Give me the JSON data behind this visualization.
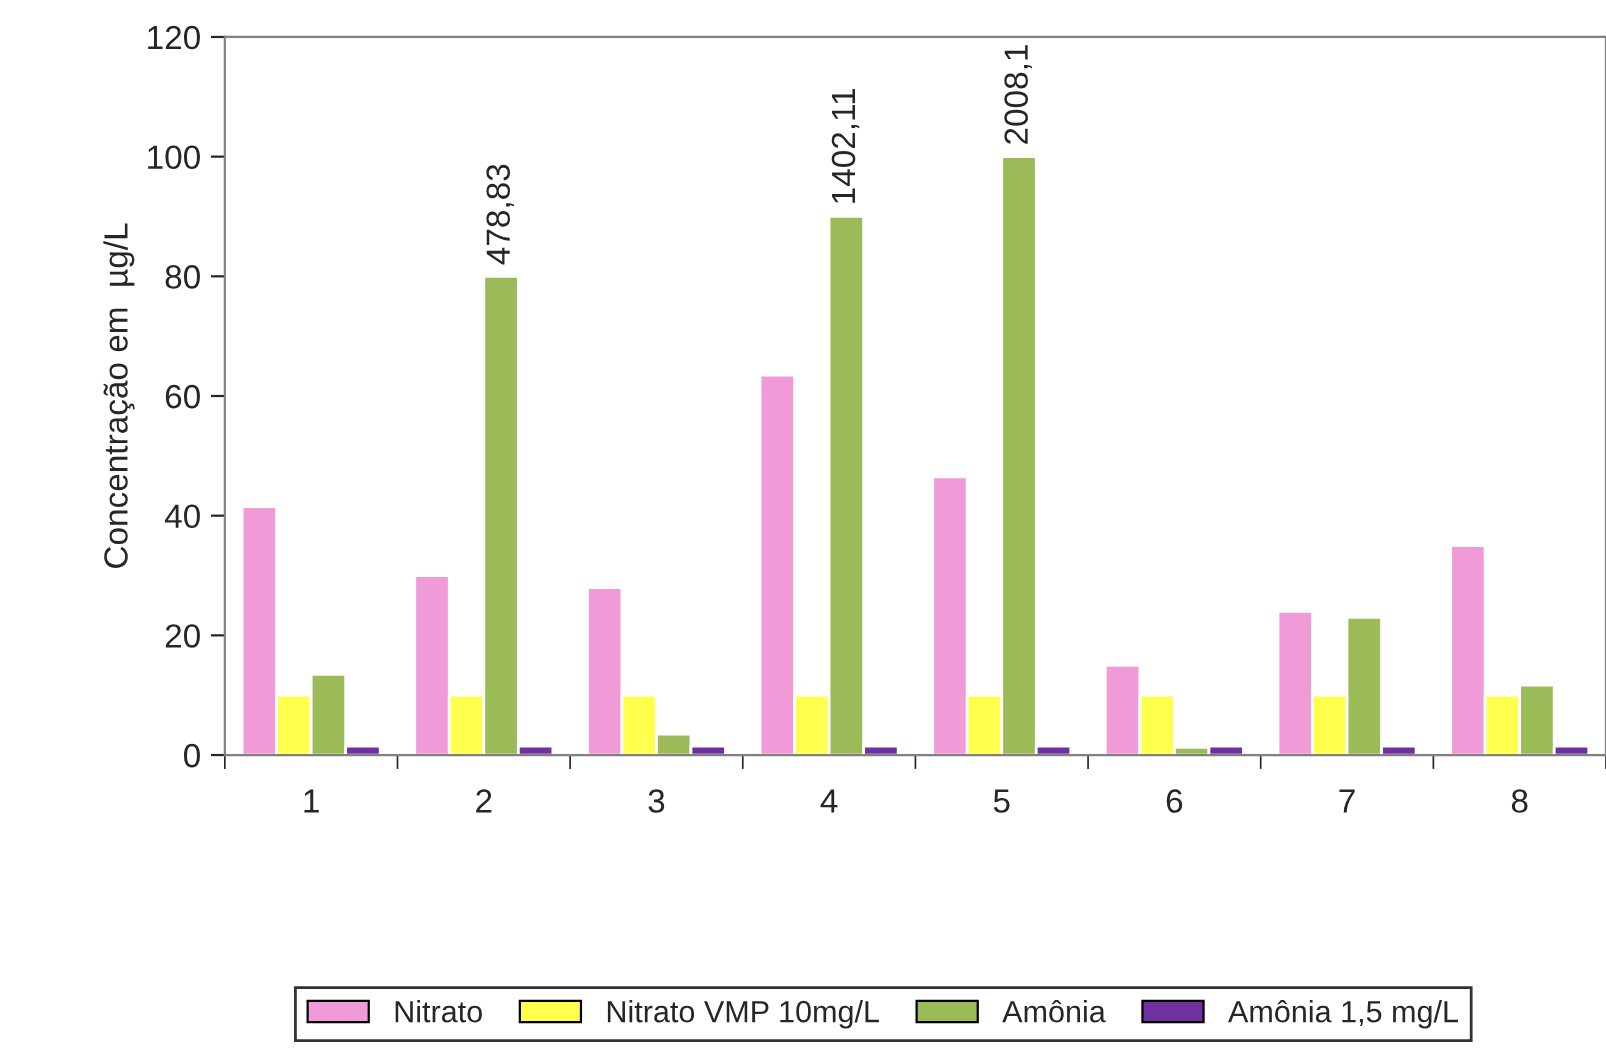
{
  "chart_data": {
    "type": "bar",
    "ylabel": "Concentração em  µg/L",
    "categories": [
      "1",
      "2",
      "3",
      "4",
      "5",
      "6",
      "7",
      "8"
    ],
    "series": [
      {
        "name": "Nitrato",
        "color": "#f09ad8",
        "values": [
          41.5,
          30,
          28,
          63.5,
          46.5,
          15,
          24,
          35
        ]
      },
      {
        "name": "Nitrato VMP 10mg/L",
        "color": "#ffff4d",
        "values": [
          10,
          10,
          10,
          10,
          10,
          10,
          10,
          10
        ]
      },
      {
        "name": "Amônia",
        "color": "#9bbb59",
        "values": [
          13.5,
          80,
          3.5,
          90,
          100,
          1.3,
          23,
          11.7
        ]
      },
      {
        "name": "Amônia 1,5 mg/L",
        "color": "#7030a0",
        "values": [
          1.5,
          1.5,
          1.5,
          1.5,
          1.5,
          1.5,
          1.5,
          1.5
        ]
      }
    ],
    "ylim": [
      0,
      120
    ],
    "yticks": [
      0,
      20,
      40,
      60,
      80,
      100,
      120
    ],
    "grid": false,
    "legend": "bottom",
    "annotations": [
      {
        "text": "478,83",
        "x": "2",
        "y": 80
      },
      {
        "text": "1402,11",
        "x": "4",
        "y": 90
      },
      {
        "text": "2008,1",
        "x": "5",
        "y": 100
      }
    ]
  }
}
